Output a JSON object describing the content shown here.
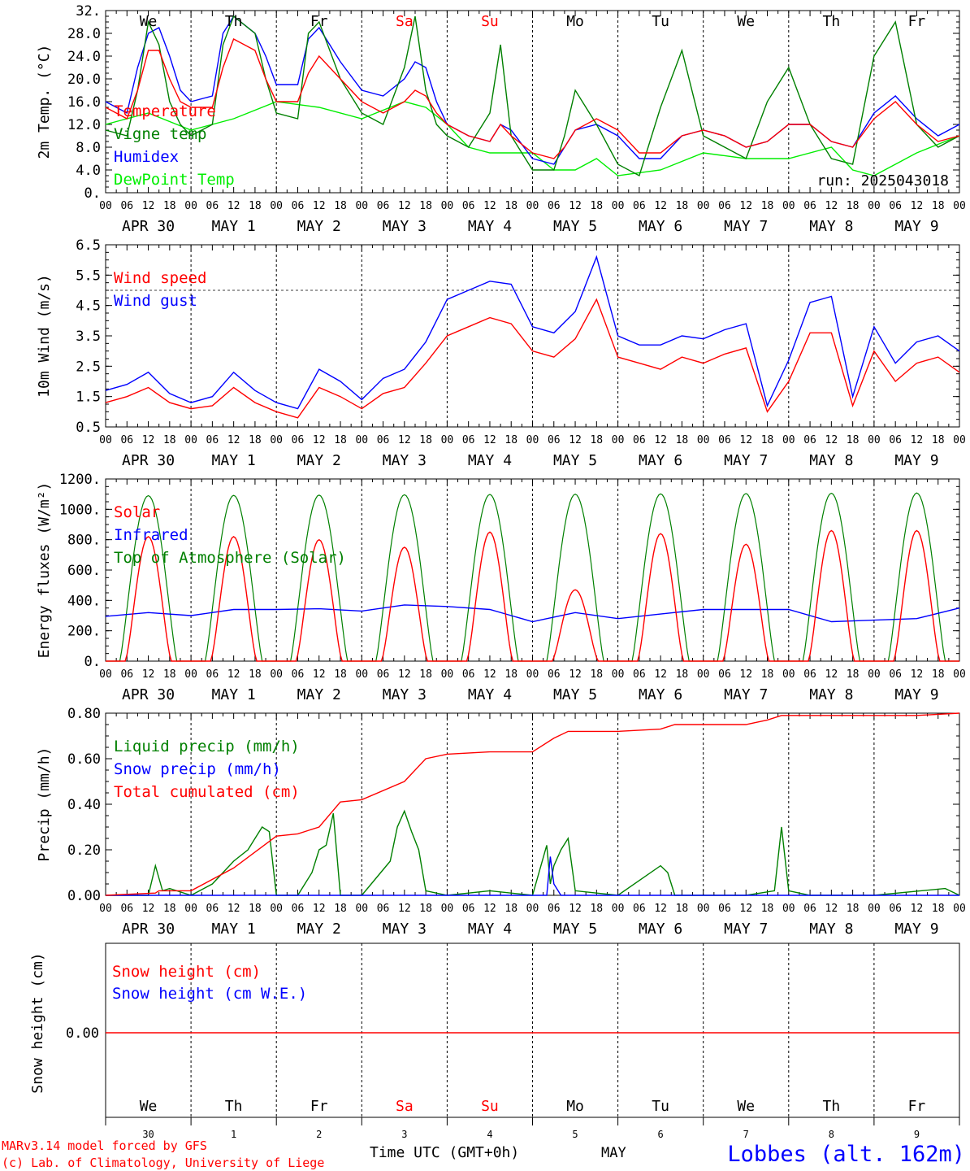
{
  "run_label": "run: 2025043018",
  "footer": {
    "model": "MARv3.14 model forced by GFS",
    "credit": "(c) Lab. of Climatology, University of Liege",
    "time_axis": "Time UTC (GMT+0h)",
    "month": "MAY",
    "station": "Lobbes (alt. 162m)"
  },
  "days": {
    "weekdays": [
      "We",
      "Th",
      "Fr",
      "Sa",
      "Su",
      "Mo",
      "Tu",
      "We",
      "Th",
      "Fr"
    ],
    "weekend_index": [
      3,
      4
    ],
    "day_numbers": [
      "30",
      "1",
      "2",
      "3",
      "4",
      "5",
      "6",
      "7",
      "8",
      "9"
    ],
    "date_labels": [
      "APR 30",
      "MAY  1",
      "MAY  2",
      "MAY  3",
      "MAY  4",
      "MAY  5",
      "MAY  6",
      "MAY  7",
      "MAY  8",
      "MAY  9"
    ],
    "hour_ticks": [
      "00",
      "06",
      "12",
      "18"
    ],
    "final_hour": "00"
  },
  "colors": {
    "red": "#ff0000",
    "green": "#008000",
    "blue": "#0000ff",
    "lightgreen": "#00ee00",
    "black": "#000000"
  },
  "chart_data": [
    {
      "type": "line",
      "ylabel": "2m Temp. (°C)",
      "ylim": [
        0,
        32
      ],
      "yticks": [
        "0.",
        "4.0",
        "8.0",
        "12.0",
        "16.0",
        "20.0",
        "24.0",
        "28.0",
        "32."
      ],
      "x_unit": "hours since Apr 30 00 UTC",
      "series": [
        {
          "name": "Temperature",
          "color": "red",
          "x": [
            0,
            6,
            9,
            12,
            15,
            18,
            21,
            24,
            30,
            33,
            36,
            42,
            45,
            48,
            54,
            57,
            60,
            66,
            72,
            78,
            84,
            87,
            90,
            93,
            96,
            102,
            108,
            111,
            114,
            120,
            126,
            129,
            132,
            138,
            144,
            150,
            156,
            162,
            168,
            174,
            180,
            186,
            192,
            198,
            204,
            210,
            216,
            222,
            228,
            234,
            240
          ],
          "y": [
            15,
            13,
            18,
            25,
            25,
            20,
            16,
            15,
            15,
            22,
            27,
            25,
            20,
            16,
            16,
            21,
            24,
            20,
            16,
            14,
            16,
            18,
            17,
            14,
            12,
            10,
            9,
            12,
            10,
            7,
            6,
            8,
            11,
            13,
            11,
            7,
            7,
            10,
            11,
            10,
            8,
            9,
            12,
            12,
            9,
            8,
            13,
            16,
            12,
            9,
            10
          ]
        },
        {
          "name": "Vigne temp",
          "color": "green",
          "x": [
            0,
            6,
            9,
            12,
            15,
            18,
            21,
            24,
            30,
            33,
            36,
            42,
            45,
            48,
            54,
            57,
            60,
            66,
            72,
            78,
            84,
            87,
            90,
            93,
            96,
            102,
            108,
            111,
            114,
            120,
            126,
            129,
            132,
            138,
            144,
            150,
            156,
            162,
            168,
            174,
            180,
            186,
            192,
            198,
            204,
            210,
            216,
            222,
            228,
            234,
            240
          ],
          "y": [
            11,
            10,
            18,
            30,
            26,
            16,
            12,
            10,
            12,
            26,
            31,
            28,
            20,
            14,
            13,
            28,
            30,
            20,
            14,
            12,
            22,
            31,
            18,
            12,
            10,
            8,
            14,
            26,
            10,
            4,
            4,
            10,
            18,
            12,
            5,
            3,
            15,
            25,
            10,
            8,
            6,
            16,
            22,
            12,
            6,
            5,
            24,
            30,
            12,
            8,
            10
          ]
        },
        {
          "name": "Humidex",
          "color": "blue",
          "x": [
            0,
            6,
            9,
            12,
            15,
            18,
            21,
            24,
            30,
            33,
            36,
            42,
            45,
            48,
            54,
            57,
            60,
            66,
            72,
            78,
            84,
            87,
            90,
            93,
            96,
            102,
            108,
            111,
            114,
            120,
            126,
            129,
            132,
            138,
            144,
            150,
            156,
            162,
            168,
            174,
            180,
            186,
            192,
            198,
            204,
            210,
            216,
            222,
            228,
            234,
            240
          ],
          "y": [
            16,
            14,
            22,
            28,
            29,
            24,
            18,
            16,
            17,
            28,
            31,
            28,
            24,
            19,
            19,
            27,
            29,
            23,
            18,
            17,
            20,
            23,
            22,
            16,
            12,
            10,
            9,
            12,
            11,
            6,
            5,
            8,
            11,
            12,
            10,
            6,
            6,
            10,
            11,
            10,
            8,
            9,
            12,
            12,
            9,
            8,
            14,
            17,
            13,
            10,
            12
          ]
        },
        {
          "name": "DewPoint Temp",
          "color": "lightgreen",
          "x": [
            0,
            12,
            24,
            36,
            48,
            60,
            72,
            84,
            90,
            96,
            102,
            108,
            120,
            126,
            132,
            138,
            144,
            156,
            168,
            180,
            192,
            204,
            210,
            216,
            222,
            228,
            240
          ],
          "y": [
            12,
            14,
            11,
            13,
            16,
            15,
            13,
            16,
            15,
            12,
            8,
            7,
            7,
            4,
            4,
            6,
            3,
            4,
            7,
            6,
            6,
            8,
            4,
            3,
            5,
            7,
            10
          ]
        }
      ]
    },
    {
      "type": "line",
      "ylabel": "10m Wind (m/s)",
      "ylim": [
        0.5,
        6.5
      ],
      "yticks": [
        "0.5",
        "1.5",
        "2.5",
        "3.5",
        "4.5",
        "5.5",
        "6.5"
      ],
      "reference_line": 5.0,
      "series": [
        {
          "name": "Wind speed",
          "color": "red",
          "x": [
            0,
            6,
            12,
            18,
            24,
            30,
            36,
            42,
            48,
            54,
            60,
            66,
            72,
            78,
            84,
            90,
            96,
            102,
            108,
            114,
            120,
            126,
            132,
            138,
            144,
            150,
            156,
            162,
            168,
            174,
            180,
            186,
            192,
            198,
            204,
            210,
            216,
            222,
            228,
            234,
            240
          ],
          "y": [
            1.3,
            1.5,
            1.8,
            1.3,
            1.1,
            1.2,
            1.8,
            1.3,
            1.0,
            0.8,
            1.8,
            1.5,
            1.1,
            1.6,
            1.8,
            2.6,
            3.5,
            3.8,
            4.1,
            3.9,
            3.0,
            2.8,
            3.4,
            4.7,
            2.8,
            2.6,
            2.4,
            2.8,
            2.6,
            2.9,
            3.1,
            1.0,
            2.0,
            3.6,
            3.6,
            1.2,
            3.0,
            2.0,
            2.6,
            2.8,
            2.3
          ]
        },
        {
          "name": "Wind gust",
          "color": "blue",
          "x": [
            0,
            6,
            12,
            18,
            24,
            30,
            36,
            42,
            48,
            54,
            60,
            66,
            72,
            78,
            84,
            90,
            96,
            102,
            108,
            114,
            120,
            126,
            132,
            138,
            144,
            150,
            156,
            162,
            168,
            174,
            180,
            186,
            192,
            198,
            204,
            210,
            216,
            222,
            228,
            234,
            240
          ],
          "y": [
            1.7,
            1.9,
            2.3,
            1.6,
            1.3,
            1.5,
            2.3,
            1.7,
            1.3,
            1.1,
            2.4,
            2.0,
            1.4,
            2.1,
            2.4,
            3.3,
            4.7,
            5.0,
            5.3,
            5.2,
            3.8,
            3.6,
            4.3,
            6.1,
            3.5,
            3.2,
            3.2,
            3.5,
            3.4,
            3.7,
            3.9,
            1.2,
            2.7,
            4.6,
            4.8,
            1.5,
            3.8,
            2.6,
            3.3,
            3.5,
            3.0
          ]
        }
      ]
    },
    {
      "type": "line",
      "ylabel": "Energy fluxes (W/m²)",
      "ylim": [
        0,
        1200
      ],
      "yticks": [
        "0.",
        "200.",
        "400.",
        "600.",
        "800.",
        "1000.",
        "1200."
      ],
      "series": [
        {
          "name": "Solar",
          "color": "red",
          "daily_peak": [
            820,
            820,
            800,
            750,
            850,
            470,
            840,
            770,
            860,
            860
          ]
        },
        {
          "name": "Infrared",
          "color": "blue",
          "x": [
            0,
            12,
            24,
            36,
            48,
            60,
            72,
            84,
            96,
            108,
            120,
            132,
            144,
            156,
            168,
            180,
            192,
            204,
            216,
            228,
            240
          ],
          "y": [
            295,
            320,
            300,
            340,
            340,
            345,
            330,
            370,
            360,
            340,
            260,
            320,
            280,
            310,
            340,
            340,
            340,
            260,
            270,
            280,
            350
          ]
        },
        {
          "name": "Top of Atmosphere (Solar)",
          "color": "green",
          "daily_peak": [
            1090,
            1092,
            1094,
            1096,
            1098,
            1100,
            1102,
            1104,
            1106,
            1108
          ]
        }
      ]
    },
    {
      "type": "line",
      "ylabel": "Precip (mm/h)",
      "ylim": [
        0,
        0.8
      ],
      "yticks": [
        "0.00",
        "0.20",
        "0.40",
        "0.60",
        "0.80"
      ],
      "series": [
        {
          "name": "Liquid precip (mm/h)",
          "color": "green",
          "x": [
            0,
            12,
            14,
            16,
            18,
            24,
            30,
            36,
            40,
            42,
            44,
            46,
            48,
            54,
            58,
            60,
            62,
            64,
            66,
            72,
            80,
            82,
            84,
            86,
            88,
            90,
            96,
            108,
            120,
            124,
            125,
            126,
            128,
            130,
            132,
            144,
            156,
            158,
            160,
            168,
            180,
            188,
            190,
            192,
            198,
            216,
            236,
            240
          ],
          "y": [
            0,
            0,
            0.13,
            0.02,
            0.03,
            0,
            0.05,
            0.15,
            0.2,
            0.25,
            0.3,
            0.28,
            0,
            0,
            0.1,
            0.2,
            0.22,
            0.36,
            0,
            0,
            0.15,
            0.3,
            0.37,
            0.28,
            0.2,
            0.02,
            0,
            0.02,
            0,
            0.22,
            0.05,
            0.13,
            0.2,
            0.25,
            0.02,
            0,
            0.13,
            0.1,
            0,
            0,
            0,
            0.02,
            0.3,
            0.02,
            0,
            0,
            0.03,
            0
          ]
        },
        {
          "name": "Snow precip (mm/h)",
          "color": "blue",
          "x": [
            0,
            124,
            125,
            126,
            128,
            240
          ],
          "y": [
            0,
            0,
            0.17,
            0.05,
            0,
            0
          ]
        },
        {
          "name": "Total cumulated (cm)",
          "color": "red",
          "x": [
            0,
            14,
            15,
            24,
            36,
            48,
            54,
            60,
            66,
            72,
            84,
            90,
            96,
            108,
            120,
            126,
            130,
            132,
            144,
            156,
            160,
            168,
            180,
            186,
            190,
            192,
            204,
            216,
            228,
            240
          ],
          "y": [
            0,
            0.01,
            0.02,
            0.02,
            0.12,
            0.26,
            0.27,
            0.3,
            0.41,
            0.42,
            0.5,
            0.6,
            0.62,
            0.63,
            0.63,
            0.69,
            0.72,
            0.72,
            0.72,
            0.73,
            0.75,
            0.75,
            0.75,
            0.77,
            0.79,
            0.79,
            0.79,
            0.79,
            0.79,
            0.8
          ]
        }
      ]
    },
    {
      "type": "line",
      "ylabel": "Snow height (cm)",
      "yticks": [
        "0.00"
      ],
      "series": [
        {
          "name": "Snow height (cm)",
          "color": "red",
          "x": [
            0,
            240
          ],
          "y": [
            0,
            0
          ]
        },
        {
          "name": "Snow height (cm W.E.)",
          "color": "blue",
          "x": [
            0,
            240
          ],
          "y": [
            0,
            0
          ]
        }
      ]
    }
  ]
}
